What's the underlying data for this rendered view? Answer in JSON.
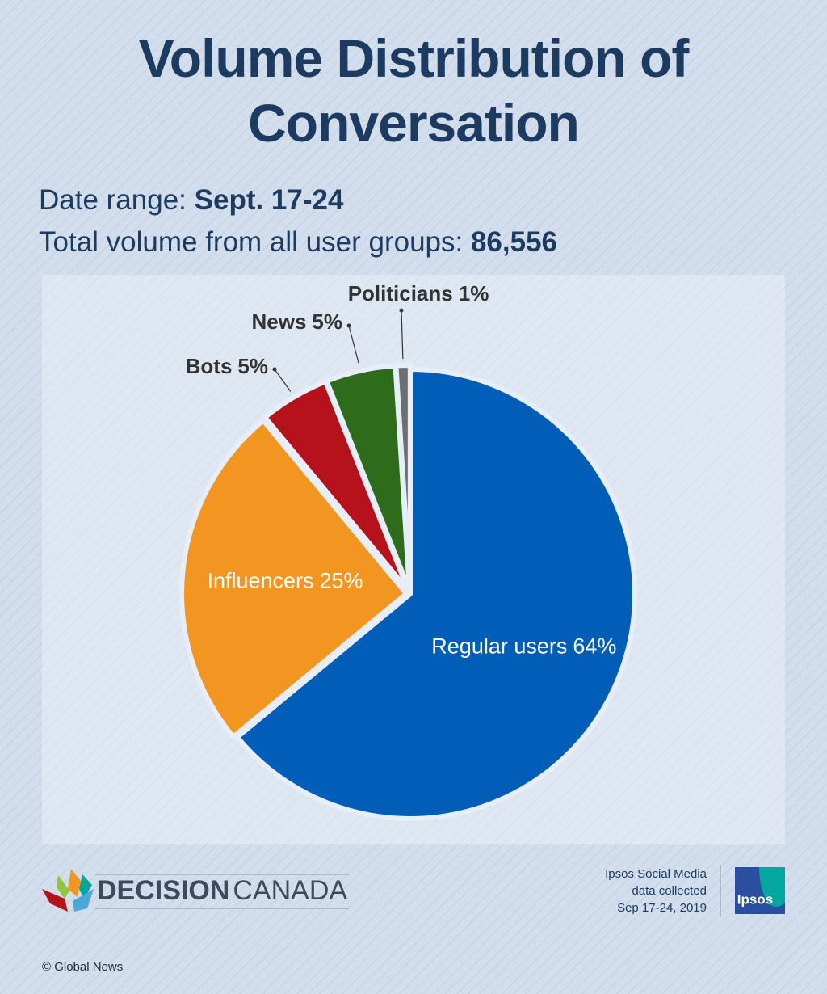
{
  "chart_data": {
    "type": "pie",
    "title": "Volume Distribution of Conversation",
    "subtitle": {
      "date_range_label": "Date range:",
      "date_range": "Sept. 17-24",
      "total_label": "Total volume from all user groups:",
      "total": "86,556"
    },
    "categories": [
      "Regular users",
      "Influencers",
      "Bots",
      "News",
      "Politicians"
    ],
    "values": [
      64,
      25,
      5,
      5,
      1
    ],
    "value_labels": [
      "64%",
      "25%",
      "5%",
      "5%",
      "1%"
    ],
    "colors": [
      "#005eb8",
      "#f39621",
      "#b5121b",
      "#2e6b1a",
      "#6d6e71"
    ]
  },
  "footer": {
    "brand_bold": "DECISION",
    "brand_light": "CANADA",
    "source": [
      "Ipsos Social Media",
      "data collected",
      "Sep 17-24, 2019"
    ],
    "ipsos": "Ipsos",
    "copyright": "© Global News"
  }
}
